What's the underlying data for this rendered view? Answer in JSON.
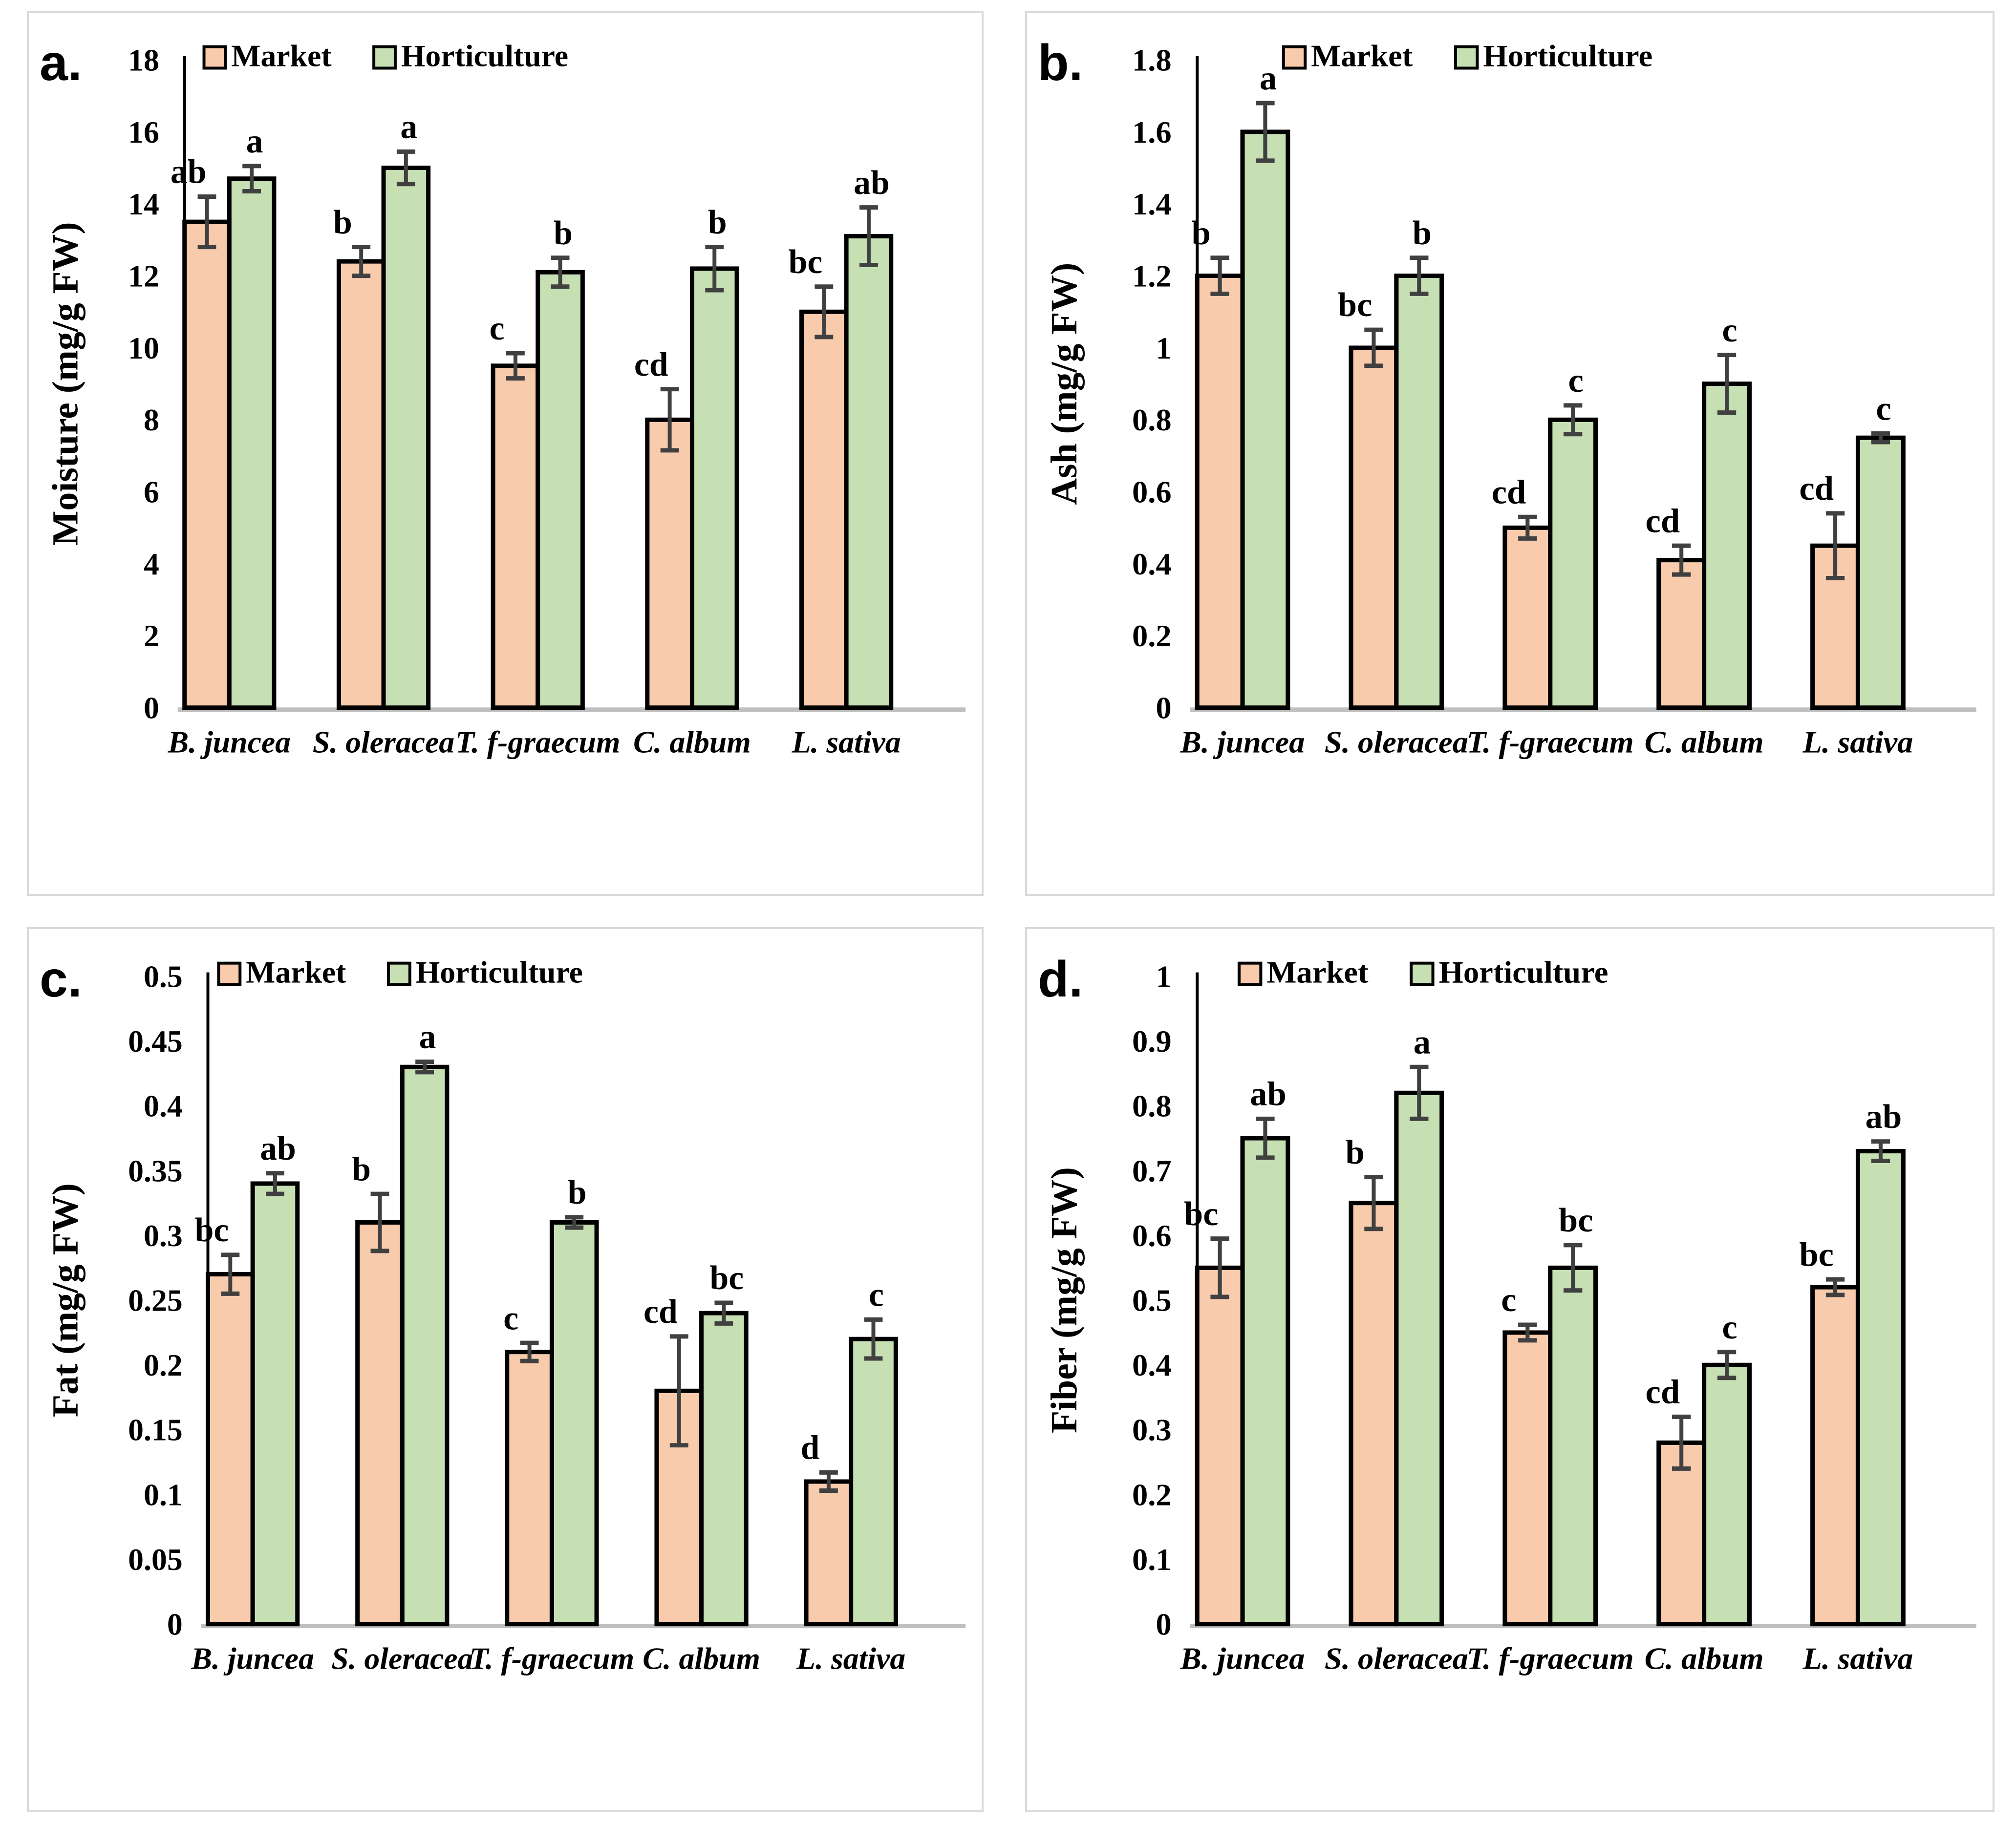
{
  "colors": {
    "market": "#F8CBAD",
    "horticulture": "#C6E0B4",
    "bar_border": "#000000",
    "error_bar": "#404040",
    "axis_line": "#000000",
    "baseline": "#BFBFBF",
    "panel_border": "#D9D9D9"
  },
  "legend": {
    "market_label": "Market",
    "horticulture_label": "Horticulture"
  },
  "chart_data": [
    {
      "type": "bar",
      "letter": "a.",
      "ylabel": "Moisture (mg/g FW)",
      "ymax": 18,
      "ystep": 2,
      "ylim": [
        0,
        18
      ],
      "grid": false,
      "legend_position": "top-left",
      "categories": [
        "B. juncea",
        "S. oleracea",
        "T. f-graecum",
        "C. album",
        "L. sativa"
      ],
      "series": [
        {
          "name": "Market",
          "color": "#F8CBAD",
          "values": [
            13.5,
            12.4,
            9.5,
            8,
            11
          ],
          "errors": [
            0.7,
            0.4,
            0.35,
            0.85,
            0.7
          ],
          "sig_labels": [
            "ab",
            "b",
            "c",
            "cd",
            "bc"
          ]
        },
        {
          "name": "Horticulture",
          "color": "#C6E0B4",
          "values": [
            14.7,
            15,
            12.1,
            12.2,
            13.1
          ],
          "errors": [
            0.35,
            0.45,
            0.4,
            0.6,
            0.8
          ],
          "sig_labels": [
            "a",
            "a",
            "b",
            "b",
            "ab"
          ]
        }
      ]
    },
    {
      "type": "bar",
      "letter": "b.",
      "ylabel": "Ash (mg/g FW)",
      "ymax": 1.8,
      "ystep": 0.2,
      "ylim": [
        0,
        1.8
      ],
      "grid": false,
      "legend_position": "top-left",
      "categories": [
        "B. juncea",
        "S. oleracea",
        "T. f-graecum",
        "C. album",
        "L. sativa"
      ],
      "series": [
        {
          "name": "Market",
          "color": "#F8CBAD",
          "values": [
            1.2,
            1,
            0.5,
            0.41,
            0.45
          ],
          "errors": [
            0.05,
            0.05,
            0.03,
            0.04,
            0.09
          ],
          "sig_labels": [
            "b",
            "bc",
            "cd",
            "cd",
            "cd"
          ]
        },
        {
          "name": "Horticulture",
          "color": "#C6E0B4",
          "values": [
            1.6,
            1.2,
            0.8,
            0.9,
            0.75
          ],
          "errors": [
            0.08,
            0.05,
            0.04,
            0.08,
            0.012
          ],
          "sig_labels": [
            "a",
            "b",
            "c",
            "c",
            "c"
          ]
        }
      ]
    },
    {
      "type": "bar",
      "letter": "c.",
      "ylabel": "Fat (mg/g FW)",
      "ymax": 0.5,
      "ystep": 0.05,
      "ylim": [
        0,
        0.5
      ],
      "grid": false,
      "legend_position": "top-left",
      "categories": [
        "B. juncea",
        "S. oleracea",
        "T. f-graecum",
        "C. album",
        "L. sativa"
      ],
      "series": [
        {
          "name": "Market",
          "color": "#F8CBAD",
          "values": [
            0.27,
            0.31,
            0.21,
            0.18,
            0.11
          ],
          "errors": [
            0.015,
            0.022,
            0.007,
            0.042,
            0.007
          ],
          "sig_labels": [
            "bc",
            "b",
            "c",
            "cd",
            "d"
          ]
        },
        {
          "name": "Horticulture",
          "color": "#C6E0B4",
          "values": [
            0.34,
            0.43,
            0.31,
            0.24,
            0.22
          ],
          "errors": [
            0.008,
            0.004,
            0.004,
            0.008,
            0.015
          ],
          "sig_labels": [
            "ab",
            "a",
            "b",
            "bc",
            "c"
          ]
        }
      ]
    },
    {
      "type": "bar",
      "letter": "d.",
      "ylabel": "Fiber (mg/g FW)",
      "ymax": 1,
      "ystep": 0.1,
      "ylim": [
        0,
        1
      ],
      "grid": false,
      "legend_position": "top-left",
      "categories": [
        "B. juncea",
        "S. oleracea",
        "T. f-graecum",
        "C. album",
        "L. sativa"
      ],
      "series": [
        {
          "name": "Market",
          "color": "#F8CBAD",
          "values": [
            0.55,
            0.65,
            0.45,
            0.28,
            0.52
          ],
          "errors": [
            0.045,
            0.04,
            0.012,
            0.04,
            0.012
          ],
          "sig_labels": [
            "bc",
            "b",
            "c",
            "cd",
            "bc"
          ]
        },
        {
          "name": "Horticulture",
          "color": "#C6E0B4",
          "values": [
            0.75,
            0.82,
            0.55,
            0.4,
            0.73
          ],
          "errors": [
            0.03,
            0.04,
            0.035,
            0.02,
            0.015
          ],
          "sig_labels": [
            "ab",
            "a",
            "bc",
            "c",
            "ab"
          ]
        }
      ]
    }
  ]
}
